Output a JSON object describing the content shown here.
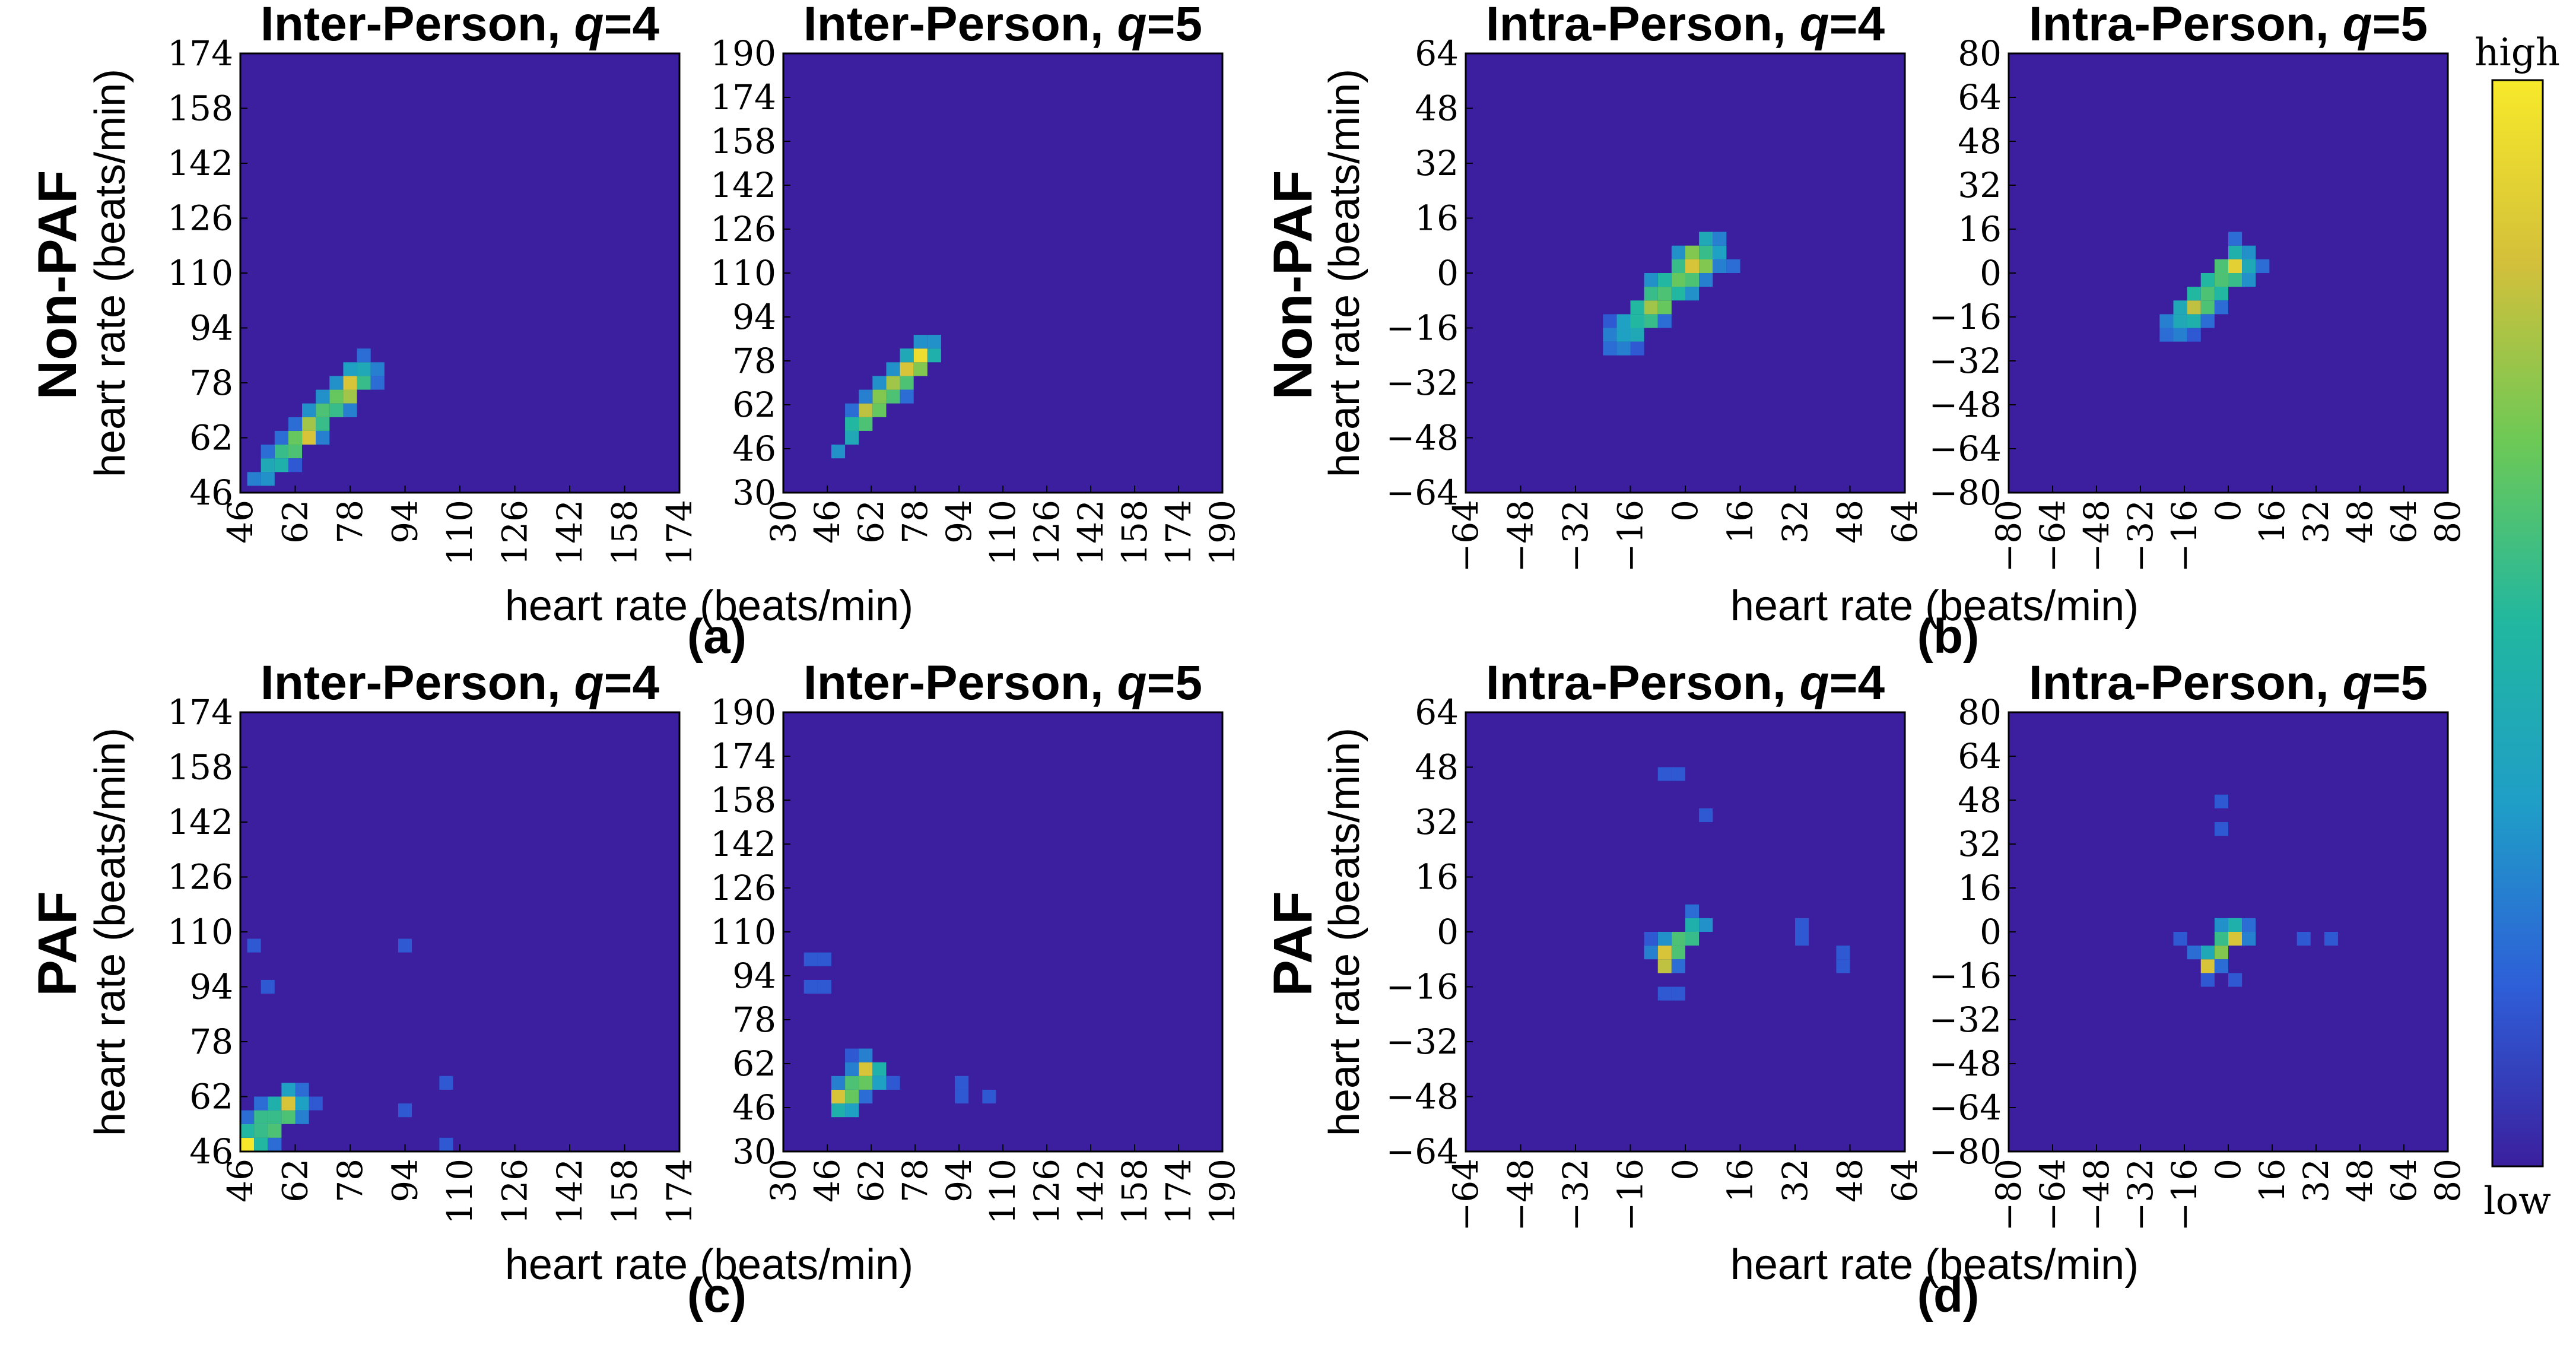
{
  "figure": {
    "row_labels": [
      "Non-PAF",
      "PAF"
    ],
    "panel_labels": [
      "(a)",
      "(b)",
      "(c)",
      "(d)"
    ],
    "colorbar": {
      "high_label": "high",
      "low_label": "low",
      "colors": [
        "#3b1f9e",
        "#2e5fd8",
        "#1f9ec7",
        "#21b7a0",
        "#6cc956",
        "#d4c03a",
        "#f7e92a"
      ]
    },
    "background_color": "#3b1f9e"
  },
  "chart_data": [
    {
      "type": "heatmap",
      "group": "Non-PAF",
      "title_prefix": "Inter-Person, ",
      "title_var": "q",
      "title_suffix": "=4",
      "xlabel": "heart rate (beats/min)",
      "ylabel": "heart rate (beats/min)",
      "xlim": [
        46,
        174
      ],
      "ylim": [
        46,
        174
      ],
      "xticks": [
        "46",
        "62",
        "78",
        "94",
        "110",
        "126",
        "142",
        "158",
        "174"
      ],
      "yticks": [
        "46",
        "62",
        "78",
        "94",
        "110",
        "126",
        "142",
        "158",
        "174"
      ],
      "bin_width": 4,
      "cells": [
        [
          50,
          50,
          0.25
        ],
        [
          54,
          50,
          0.3
        ],
        [
          54,
          54,
          0.4
        ],
        [
          58,
          54,
          0.45
        ],
        [
          58,
          58,
          0.55
        ],
        [
          62,
          58,
          0.6
        ],
        [
          62,
          62,
          0.65
        ],
        [
          66,
          62,
          0.85
        ],
        [
          66,
          66,
          0.75
        ],
        [
          70,
          66,
          0.55
        ],
        [
          70,
          70,
          0.6
        ],
        [
          74,
          70,
          0.55
        ],
        [
          74,
          74,
          0.65
        ],
        [
          78,
          74,
          0.75
        ],
        [
          78,
          78,
          0.85
        ],
        [
          82,
          78,
          0.55
        ],
        [
          82,
          82,
          0.4
        ],
        [
          86,
          82,
          0.25
        ],
        [
          58,
          62,
          0.2
        ],
        [
          62,
          66,
          0.2
        ],
        [
          70,
          74,
          0.3
        ],
        [
          74,
          78,
          0.3
        ],
        [
          78,
          82,
          0.35
        ],
        [
          82,
          86,
          0.2
        ],
        [
          54,
          58,
          0.2
        ],
        [
          66,
          70,
          0.3
        ],
        [
          62,
          54,
          0.15
        ],
        [
          70,
          62,
          0.25
        ],
        [
          78,
          70,
          0.25
        ],
        [
          86,
          78,
          0.2
        ]
      ]
    },
    {
      "type": "heatmap",
      "group": "Non-PAF",
      "title_prefix": "Inter-Person, ",
      "title_var": "q",
      "title_suffix": "=5",
      "xlabel": "",
      "ylabel": "",
      "xlim": [
        30,
        190
      ],
      "ylim": [
        30,
        190
      ],
      "xticks": [
        "30",
        "46",
        "62",
        "78",
        "94",
        "110",
        "126",
        "142",
        "158",
        "174",
        "190"
      ],
      "yticks": [
        "30",
        "46",
        "62",
        "78",
        "94",
        "110",
        "126",
        "142",
        "158",
        "174",
        "190"
      ],
      "bin_width": 5,
      "cells": [
        [
          50,
          45,
          0.3
        ],
        [
          55,
          50,
          0.4
        ],
        [
          55,
          55,
          0.5
        ],
        [
          60,
          55,
          0.6
        ],
        [
          60,
          60,
          0.8
        ],
        [
          65,
          60,
          0.65
        ],
        [
          65,
          65,
          0.7
        ],
        [
          70,
          65,
          0.6
        ],
        [
          70,
          70,
          0.75
        ],
        [
          75,
          70,
          0.6
        ],
        [
          75,
          75,
          0.85
        ],
        [
          80,
          75,
          0.7
        ],
        [
          80,
          80,
          0.95
        ],
        [
          85,
          80,
          0.45
        ],
        [
          85,
          85,
          0.3
        ],
        [
          60,
          65,
          0.25
        ],
        [
          70,
          75,
          0.3
        ],
        [
          80,
          85,
          0.3
        ],
        [
          55,
          60,
          0.2
        ],
        [
          65,
          70,
          0.3
        ],
        [
          75,
          80,
          0.4
        ],
        [
          75,
          65,
          0.2
        ]
      ]
    },
    {
      "type": "heatmap",
      "group": "Non-PAF",
      "title_prefix": "Intra-Person, ",
      "title_var": "q",
      "title_suffix": "=4",
      "xlabel": "heart rate (beats/min)",
      "ylabel": "heart rate (beats/min)",
      "xlim": [
        -64,
        64
      ],
      "ylim": [
        -64,
        64
      ],
      "xticks": [
        "−64",
        "−48",
        "−32",
        "−16",
        "0",
        "16",
        "32",
        "48",
        "64"
      ],
      "yticks": [
        "−64",
        "−48",
        "−32",
        "−16",
        "0",
        "16",
        "32",
        "48",
        "64"
      ],
      "bin_width": 4,
      "cells": [
        [
          -22,
          -22,
          0.2
        ],
        [
          -18,
          -22,
          0.25
        ],
        [
          -22,
          -18,
          0.25
        ],
        [
          -18,
          -18,
          0.35
        ],
        [
          -14,
          -18,
          0.4
        ],
        [
          -18,
          -14,
          0.35
        ],
        [
          -14,
          -14,
          0.5
        ],
        [
          -10,
          -14,
          0.55
        ],
        [
          -14,
          -10,
          0.5
        ],
        [
          -10,
          -10,
          0.75
        ],
        [
          -6,
          -10,
          0.65
        ],
        [
          -10,
          -6,
          0.55
        ],
        [
          -6,
          -6,
          0.6
        ],
        [
          -2,
          -6,
          0.5
        ],
        [
          -6,
          -2,
          0.5
        ],
        [
          -2,
          -2,
          0.65
        ],
        [
          2,
          -2,
          0.6
        ],
        [
          -2,
          2,
          0.55
        ],
        [
          2,
          2,
          0.85
        ],
        [
          6,
          2,
          0.7
        ],
        [
          2,
          6,
          0.7
        ],
        [
          6,
          6,
          0.55
        ],
        [
          10,
          6,
          0.35
        ],
        [
          6,
          10,
          0.4
        ],
        [
          10,
          10,
          0.25
        ],
        [
          -14,
          -22,
          0.15
        ],
        [
          -22,
          -14,
          0.15
        ],
        [
          -6,
          -14,
          0.2
        ],
        [
          2,
          -6,
          0.3
        ],
        [
          -10,
          -2,
          0.3
        ],
        [
          6,
          -2,
          0.25
        ],
        [
          -2,
          6,
          0.3
        ],
        [
          10,
          2,
          0.25
        ],
        [
          14,
          2,
          0.2
        ]
      ]
    },
    {
      "type": "heatmap",
      "group": "Non-PAF",
      "title_prefix": "Intra-Person, ",
      "title_var": "q",
      "title_suffix": "=5",
      "xlabel": "",
      "ylabel": "",
      "xlim": [
        -80,
        80
      ],
      "ylim": [
        -80,
        80
      ],
      "xticks": [
        "−80",
        "−64",
        "−48",
        "−32",
        "−16",
        "0",
        "16",
        "32",
        "48",
        "64",
        "80"
      ],
      "yticks": [
        "−80",
        "−64",
        "−48",
        "−32",
        "−16",
        "0",
        "16",
        "32",
        "48",
        "64",
        "80"
      ],
      "bin_width": 5,
      "cells": [
        [
          -22.5,
          -22.5,
          0.2
        ],
        [
          -17.5,
          -22.5,
          0.25
        ],
        [
          -22.5,
          -17.5,
          0.25
        ],
        [
          -17.5,
          -17.5,
          0.4
        ],
        [
          -12.5,
          -17.5,
          0.45
        ],
        [
          -17.5,
          -12.5,
          0.4
        ],
        [
          -12.5,
          -12.5,
          0.8
        ],
        [
          -7.5,
          -12.5,
          0.6
        ],
        [
          -12.5,
          -7.5,
          0.5
        ],
        [
          -7.5,
          -7.5,
          0.6
        ],
        [
          -2.5,
          -7.5,
          0.5
        ],
        [
          -7.5,
          -2.5,
          0.5
        ],
        [
          -2.5,
          -2.5,
          0.6
        ],
        [
          2.5,
          -2.5,
          0.55
        ],
        [
          -2.5,
          2.5,
          0.6
        ],
        [
          2.5,
          2.5,
          0.9
        ],
        [
          7.5,
          2.5,
          0.4
        ],
        [
          2.5,
          7.5,
          0.45
        ],
        [
          7.5,
          7.5,
          0.3
        ],
        [
          2.5,
          12.5,
          0.2
        ],
        [
          -12.5,
          -22.5,
          0.15
        ],
        [
          -7.5,
          -17.5,
          0.2
        ],
        [
          7.5,
          -2.5,
          0.3
        ],
        [
          12.5,
          2.5,
          0.2
        ],
        [
          -2.5,
          -12.5,
          0.2
        ]
      ]
    },
    {
      "type": "heatmap",
      "group": "PAF",
      "title_prefix": "Inter-Person, ",
      "title_var": "q",
      "title_suffix": "=4",
      "xlabel": "heart rate (beats/min)",
      "ylabel": "heart rate (beats/min)",
      "xlim": [
        46,
        174
      ],
      "ylim": [
        46,
        174
      ],
      "xticks": [
        "46",
        "62",
        "78",
        "94",
        "110",
        "126",
        "142",
        "158",
        "174"
      ],
      "yticks": [
        "46",
        "62",
        "78",
        "94",
        "110",
        "126",
        "142",
        "158",
        "174"
      ],
      "bin_width": 4,
      "cells": [
        [
          48,
          48,
          1.0
        ],
        [
          52,
          48,
          0.5
        ],
        [
          48,
          52,
          0.5
        ],
        [
          52,
          52,
          0.55
        ],
        [
          56,
          52,
          0.6
        ],
        [
          52,
          56,
          0.55
        ],
        [
          56,
          56,
          0.55
        ],
        [
          60,
          56,
          0.6
        ],
        [
          56,
          60,
          0.45
        ],
        [
          60,
          60,
          0.85
        ],
        [
          64,
          60,
          0.35
        ],
        [
          60,
          64,
          0.35
        ],
        [
          64,
          56,
          0.25
        ],
        [
          48,
          56,
          0.2
        ],
        [
          52,
          60,
          0.2
        ],
        [
          56,
          48,
          0.2
        ],
        [
          64,
          64,
          0.2
        ],
        [
          68,
          60,
          0.15
        ],
        [
          50,
          106,
          0.15
        ],
        [
          54,
          94,
          0.15
        ],
        [
          94,
          106,
          0.15
        ],
        [
          94,
          58,
          0.15
        ],
        [
          106,
          66,
          0.15
        ],
        [
          106,
          48,
          0.15
        ]
      ]
    },
    {
      "type": "heatmap",
      "group": "PAF",
      "title_prefix": "Inter-Person, ",
      "title_var": "q",
      "title_suffix": "=5",
      "xlabel": "",
      "ylabel": "",
      "xlim": [
        30,
        190
      ],
      "ylim": [
        30,
        190
      ],
      "xticks": [
        "30",
        "46",
        "62",
        "78",
        "94",
        "110",
        "126",
        "142",
        "158",
        "174",
        "190"
      ],
      "yticks": [
        "30",
        "46",
        "62",
        "78",
        "94",
        "110",
        "126",
        "142",
        "158",
        "174",
        "190"
      ],
      "bin_width": 5,
      "cells": [
        [
          50,
          45,
          0.45
        ],
        [
          55,
          45,
          0.35
        ],
        [
          50,
          50,
          0.85
        ],
        [
          55,
          50,
          0.65
        ],
        [
          55,
          55,
          0.6
        ],
        [
          60,
          55,
          0.65
        ],
        [
          60,
          60,
          0.85
        ],
        [
          65,
          60,
          0.45
        ],
        [
          65,
          55,
          0.35
        ],
        [
          60,
          65,
          0.25
        ],
        [
          55,
          60,
          0.25
        ],
        [
          50,
          55,
          0.25
        ],
        [
          60,
          50,
          0.2
        ],
        [
          70,
          55,
          0.15
        ],
        [
          55,
          65,
          0.15
        ],
        [
          40,
          100,
          0.15
        ],
        [
          45,
          100,
          0.15
        ],
        [
          40,
          90,
          0.15
        ],
        [
          45,
          90,
          0.15
        ],
        [
          95,
          55,
          0.15
        ],
        [
          95,
          50,
          0.15
        ],
        [
          105,
          50,
          0.15
        ]
      ]
    },
    {
      "type": "heatmap",
      "group": "PAF",
      "title_prefix": "Intra-Person, ",
      "title_var": "q",
      "title_suffix": "=4",
      "xlabel": "heart rate (beats/min)",
      "ylabel": "heart rate (beats/min)",
      "xlim": [
        -64,
        64
      ],
      "ylim": [
        -64,
        64
      ],
      "xticks": [
        "−64",
        "−48",
        "−32",
        "−16",
        "0",
        "16",
        "32",
        "48",
        "64"
      ],
      "yticks": [
        "−64",
        "−48",
        "−32",
        "−16",
        "0",
        "16",
        "32",
        "48",
        "64"
      ],
      "bin_width": 4,
      "cells": [
        [
          -6,
          -10,
          0.8
        ],
        [
          -6,
          -6,
          0.85
        ],
        [
          -2,
          -6,
          0.6
        ],
        [
          -2,
          -2,
          0.6
        ],
        [
          2,
          -2,
          0.55
        ],
        [
          2,
          2,
          0.45
        ],
        [
          6,
          2,
          0.3
        ],
        [
          -6,
          -2,
          0.3
        ],
        [
          -10,
          -6,
          0.25
        ],
        [
          2,
          6,
          0.2
        ],
        [
          -2,
          -10,
          0.2
        ],
        [
          -6,
          -18,
          0.15
        ],
        [
          -2,
          -18,
          0.15
        ],
        [
          -10,
          -2,
          0.15
        ],
        [
          -2,
          46,
          0.15
        ],
        [
          -6,
          46,
          0.15
        ],
        [
          6,
          34,
          0.15
        ],
        [
          34,
          2,
          0.15
        ],
        [
          34,
          -2,
          0.15
        ],
        [
          46,
          -6,
          0.15
        ],
        [
          46,
          -10,
          0.15
        ]
      ]
    },
    {
      "type": "heatmap",
      "group": "PAF",
      "title_prefix": "Intra-Person, ",
      "title_var": "q",
      "title_suffix": "=5",
      "xlabel": "",
      "ylabel": "",
      "xlim": [
        -80,
        80
      ],
      "ylim": [
        -80,
        80
      ],
      "xticks": [
        "−80",
        "−64",
        "−48",
        "−32",
        "−16",
        "0",
        "16",
        "32",
        "48",
        "64",
        "80"
      ],
      "yticks": [
        "−80",
        "−64",
        "−48",
        "−32",
        "−16",
        "0",
        "16",
        "32",
        "48",
        "64",
        "80"
      ],
      "bin_width": 5,
      "cells": [
        [
          -7.5,
          -12.5,
          0.85
        ],
        [
          -2.5,
          -7.5,
          0.7
        ],
        [
          2.5,
          -2.5,
          0.85
        ],
        [
          -2.5,
          -2.5,
          0.55
        ],
        [
          2.5,
          2.5,
          0.45
        ],
        [
          -7.5,
          -7.5,
          0.4
        ],
        [
          -2.5,
          2.5,
          0.3
        ],
        [
          7.5,
          -2.5,
          0.25
        ],
        [
          7.5,
          2.5,
          0.2
        ],
        [
          -12.5,
          -7.5,
          0.2
        ],
        [
          -2.5,
          -12.5,
          0.2
        ],
        [
          2.5,
          -17.5,
          0.15
        ],
        [
          -7.5,
          -17.5,
          0.15
        ],
        [
          -2.5,
          47.5,
          0.15
        ],
        [
          -2.5,
          37.5,
          0.15
        ],
        [
          27.5,
          -2.5,
          0.15
        ],
        [
          37.5,
          -2.5,
          0.15
        ],
        [
          -17.5,
          -2.5,
          0.15
        ]
      ]
    }
  ]
}
